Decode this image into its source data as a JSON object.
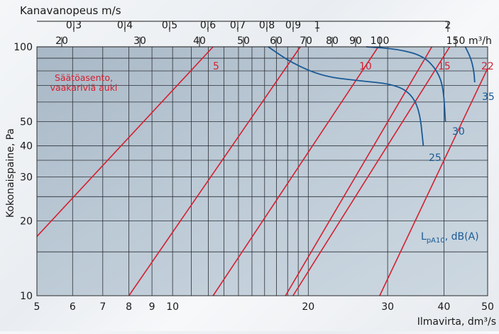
{
  "chart_data": {
    "type": "line",
    "title": "",
    "xlabel": "Ilmavirta, dm³/s",
    "ylabel": "Kokonaispaine, Pa",
    "x_scale": "log",
    "y_scale": "log",
    "xlim": [
      5,
      50
    ],
    "ylim": [
      10,
      100
    ],
    "x_ticks": [
      5,
      6,
      7,
      8,
      9,
      10,
      20,
      30,
      40,
      50
    ],
    "y_ticks": [
      10,
      20,
      30,
      40,
      50,
      100
    ],
    "top_axis_velocity": {
      "label": "Kanavanopeus m/s",
      "ticks": [
        "0,3",
        "0,4",
        "0,5",
        "0,6",
        "0,7",
        "0,8",
        "0,9",
        "1",
        "2"
      ]
    },
    "top_axis_flow": {
      "label": "m³/h",
      "ticks": [
        "20",
        "30",
        "40",
        "50",
        "60",
        "70",
        "80",
        "90",
        "100",
        "150"
      ]
    },
    "annotation": "Säätöasento, vaakariviä auki",
    "sound_label_main": "L",
    "sound_label_sub": "pA10",
    "sound_label_unit": ", dB(A)",
    "colors": {
      "position": "#d42030",
      "sound": "#1a5a96"
    },
    "position_series": [
      {
        "name": "5",
        "points": [
          [
            5,
            17.3
          ],
          [
            12.3,
            100
          ]
        ]
      },
      {
        "name": "10",
        "points": [
          [
            8,
            10
          ],
          [
            19.2,
            100
          ]
        ]
      },
      {
        "name": "",
        "points": [
          [
            12.3,
            10
          ],
          [
            28.6,
            100
          ]
        ]
      },
      {
        "name": "15",
        "points": [
          [
            17.8,
            10
          ],
          [
            37.6,
            100
          ]
        ]
      },
      {
        "name": "",
        "points": [
          [
            18.5,
            10
          ],
          [
            41.2,
            100
          ]
        ]
      },
      {
        "name": "22",
        "points": [
          [
            28.8,
            10
          ],
          [
            50,
            82
          ]
        ]
      }
    ],
    "sound_series": [
      {
        "name": "25",
        "points": [
          [
            16.3,
            100
          ],
          [
            18.4,
            86
          ],
          [
            21.6,
            76
          ],
          [
            26,
            73
          ],
          [
            30.5,
            71
          ],
          [
            33.5,
            66
          ],
          [
            35.3,
            56
          ],
          [
            36,
            40
          ]
        ]
      },
      {
        "name": "30",
        "points": [
          [
            26.9,
            100
          ],
          [
            31.5,
            98
          ],
          [
            36,
            92
          ],
          [
            38.7,
            80
          ],
          [
            39.9,
            68
          ],
          [
            40.3,
            50
          ]
        ]
      },
      {
        "name": "35",
        "points": [
          [
            44.6,
            100
          ],
          [
            45.9,
            90
          ],
          [
            46.6,
            80
          ],
          [
            46.8,
            72
          ]
        ]
      }
    ]
  }
}
